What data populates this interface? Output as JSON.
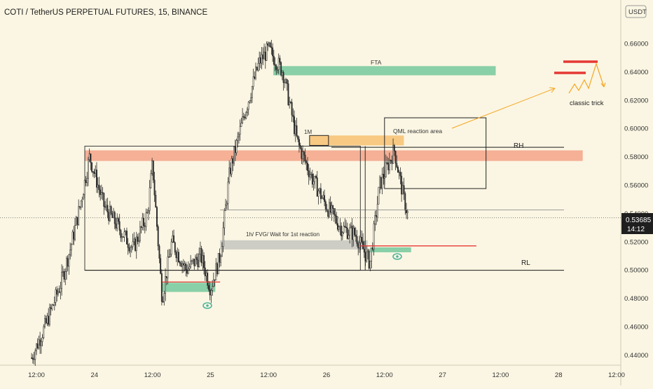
{
  "header": {
    "title": "COTI / TetherUS PERPETUAL FUTURES, 15, BINANCE"
  },
  "price_axis": {
    "currency": "USDT",
    "ticks": [
      "0.66000",
      "0.64000",
      "0.62000",
      "0.60000",
      "0.58000",
      "0.56000",
      "0.54000",
      "0.52000",
      "0.50000",
      "0.48000",
      "0.46000",
      "0.44000"
    ],
    "current_price": "0.53685",
    "countdown": "14:12"
  },
  "time_axis": {
    "ticks": [
      "12:00",
      "24",
      "12:00",
      "25",
      "12:00",
      "26",
      "12:00",
      "27",
      "12:00",
      "28",
      "12:00"
    ]
  },
  "annotations": {
    "fta": "FTA",
    "one_m": "1M",
    "qml": "QML reaction area",
    "rh": "RH",
    "rl": "RL",
    "fvg": "1h/ FVG/ Wait for 1st reaction",
    "classic_trick": "classic trick"
  },
  "colors": {
    "background": "#fbf6e3",
    "candle_body": "#2a2a2a",
    "fta_zone": "#7fcba2",
    "supply_zone": "#f4a98f",
    "orange_zone": "#f7c47a",
    "gray_zone": "#c9c9c2",
    "red_line": "#e53935",
    "arrow_orange": "#f5a623",
    "eye_green": "#4fb39a"
  },
  "chart_data": {
    "type": "candlestick",
    "symbol": "COTI / TetherUS PERPETUAL FUTURES",
    "interval": "15",
    "exchange": "BINANCE",
    "y_range": [
      0.433,
      0.676
    ],
    "y_ticks": [
      0.66,
      0.64,
      0.62,
      0.6,
      0.58,
      0.56,
      0.54,
      0.52,
      0.5,
      0.48,
      0.46,
      0.44
    ],
    "x_labels": [
      "12:00",
      "24",
      "12:00",
      "25",
      "12:00",
      "26",
      "12:00",
      "27",
      "12:00",
      "28",
      "12:00"
    ],
    "last_price": 0.53685,
    "price_path": [
      [
        "23 11:00",
        0.438
      ],
      [
        "23 14:00",
        0.462
      ],
      [
        "23 17:00",
        0.49
      ],
      [
        "23 19:00",
        0.515
      ],
      [
        "23 21:00",
        0.545
      ],
      [
        "23 23:00",
        0.58
      ],
      [
        "24 02:00",
        0.545
      ],
      [
        "24 05:00",
        0.53
      ],
      [
        "24 08:00",
        0.515
      ],
      [
        "24 11:00",
        0.54
      ],
      [
        "24 12:00",
        0.575
      ],
      [
        "24 14:00",
        0.48
      ],
      [
        "24 16:00",
        0.52
      ],
      [
        "24 19:00",
        0.5
      ],
      [
        "24 22:00",
        0.51
      ],
      [
        "25 00:00",
        0.487
      ],
      [
        "25 02:00",
        0.51
      ],
      [
        "25 04:00",
        0.57
      ],
      [
        "25 07:00",
        0.61
      ],
      [
        "25 10:00",
        0.646
      ],
      [
        "25 12:00",
        0.656
      ],
      [
        "25 15:00",
        0.64
      ],
      [
        "25 18:00",
        0.59
      ],
      [
        "25 21:00",
        0.565
      ],
      [
        "26 00:00",
        0.545
      ],
      [
        "26 03:00",
        0.53
      ],
      [
        "26 06:00",
        0.525
      ],
      [
        "26 09:00",
        0.505
      ],
      [
        "26 11:00",
        0.56
      ],
      [
        "26 14:00",
        0.585
      ],
      [
        "26 16:00",
        0.55
      ],
      [
        "26 17:00",
        0.537
      ]
    ],
    "zones": [
      {
        "label": "FTA",
        "low": 0.6375,
        "high": 0.644,
        "start": "25 13:00",
        "end": "27 11:00"
      },
      {
        "label": "",
        "low": 0.577,
        "high": 0.5845,
        "start": "23 22:00",
        "end": "28 05:00"
      },
      {
        "label": "1M",
        "low": 0.588,
        "high": 0.595,
        "start": "25 20:30",
        "end": "26 16:00"
      },
      {
        "label": "1h/ FVG/ Wait for 1st reaction",
        "low": 0.5145,
        "high": 0.521,
        "start": "25 02:00",
        "end": "26 08:30"
      },
      {
        "label": "",
        "low": 0.4845,
        "high": 0.491,
        "start": "24 14:00",
        "end": "25 01:00"
      },
      {
        "label": "",
        "low": 0.5125,
        "high": 0.516,
        "start": "26 09:00",
        "end": "26 17:30"
      }
    ],
    "levels": [
      {
        "label": "RH",
        "price": 0.5867
      },
      {
        "label": "RL",
        "price": 0.4998
      }
    ],
    "boxes": [
      {
        "label": "QML reaction area",
        "low": 0.5575,
        "high": 0.6075,
        "start": "26 12:00",
        "end": "27 09:00"
      }
    ],
    "grid": true
  }
}
